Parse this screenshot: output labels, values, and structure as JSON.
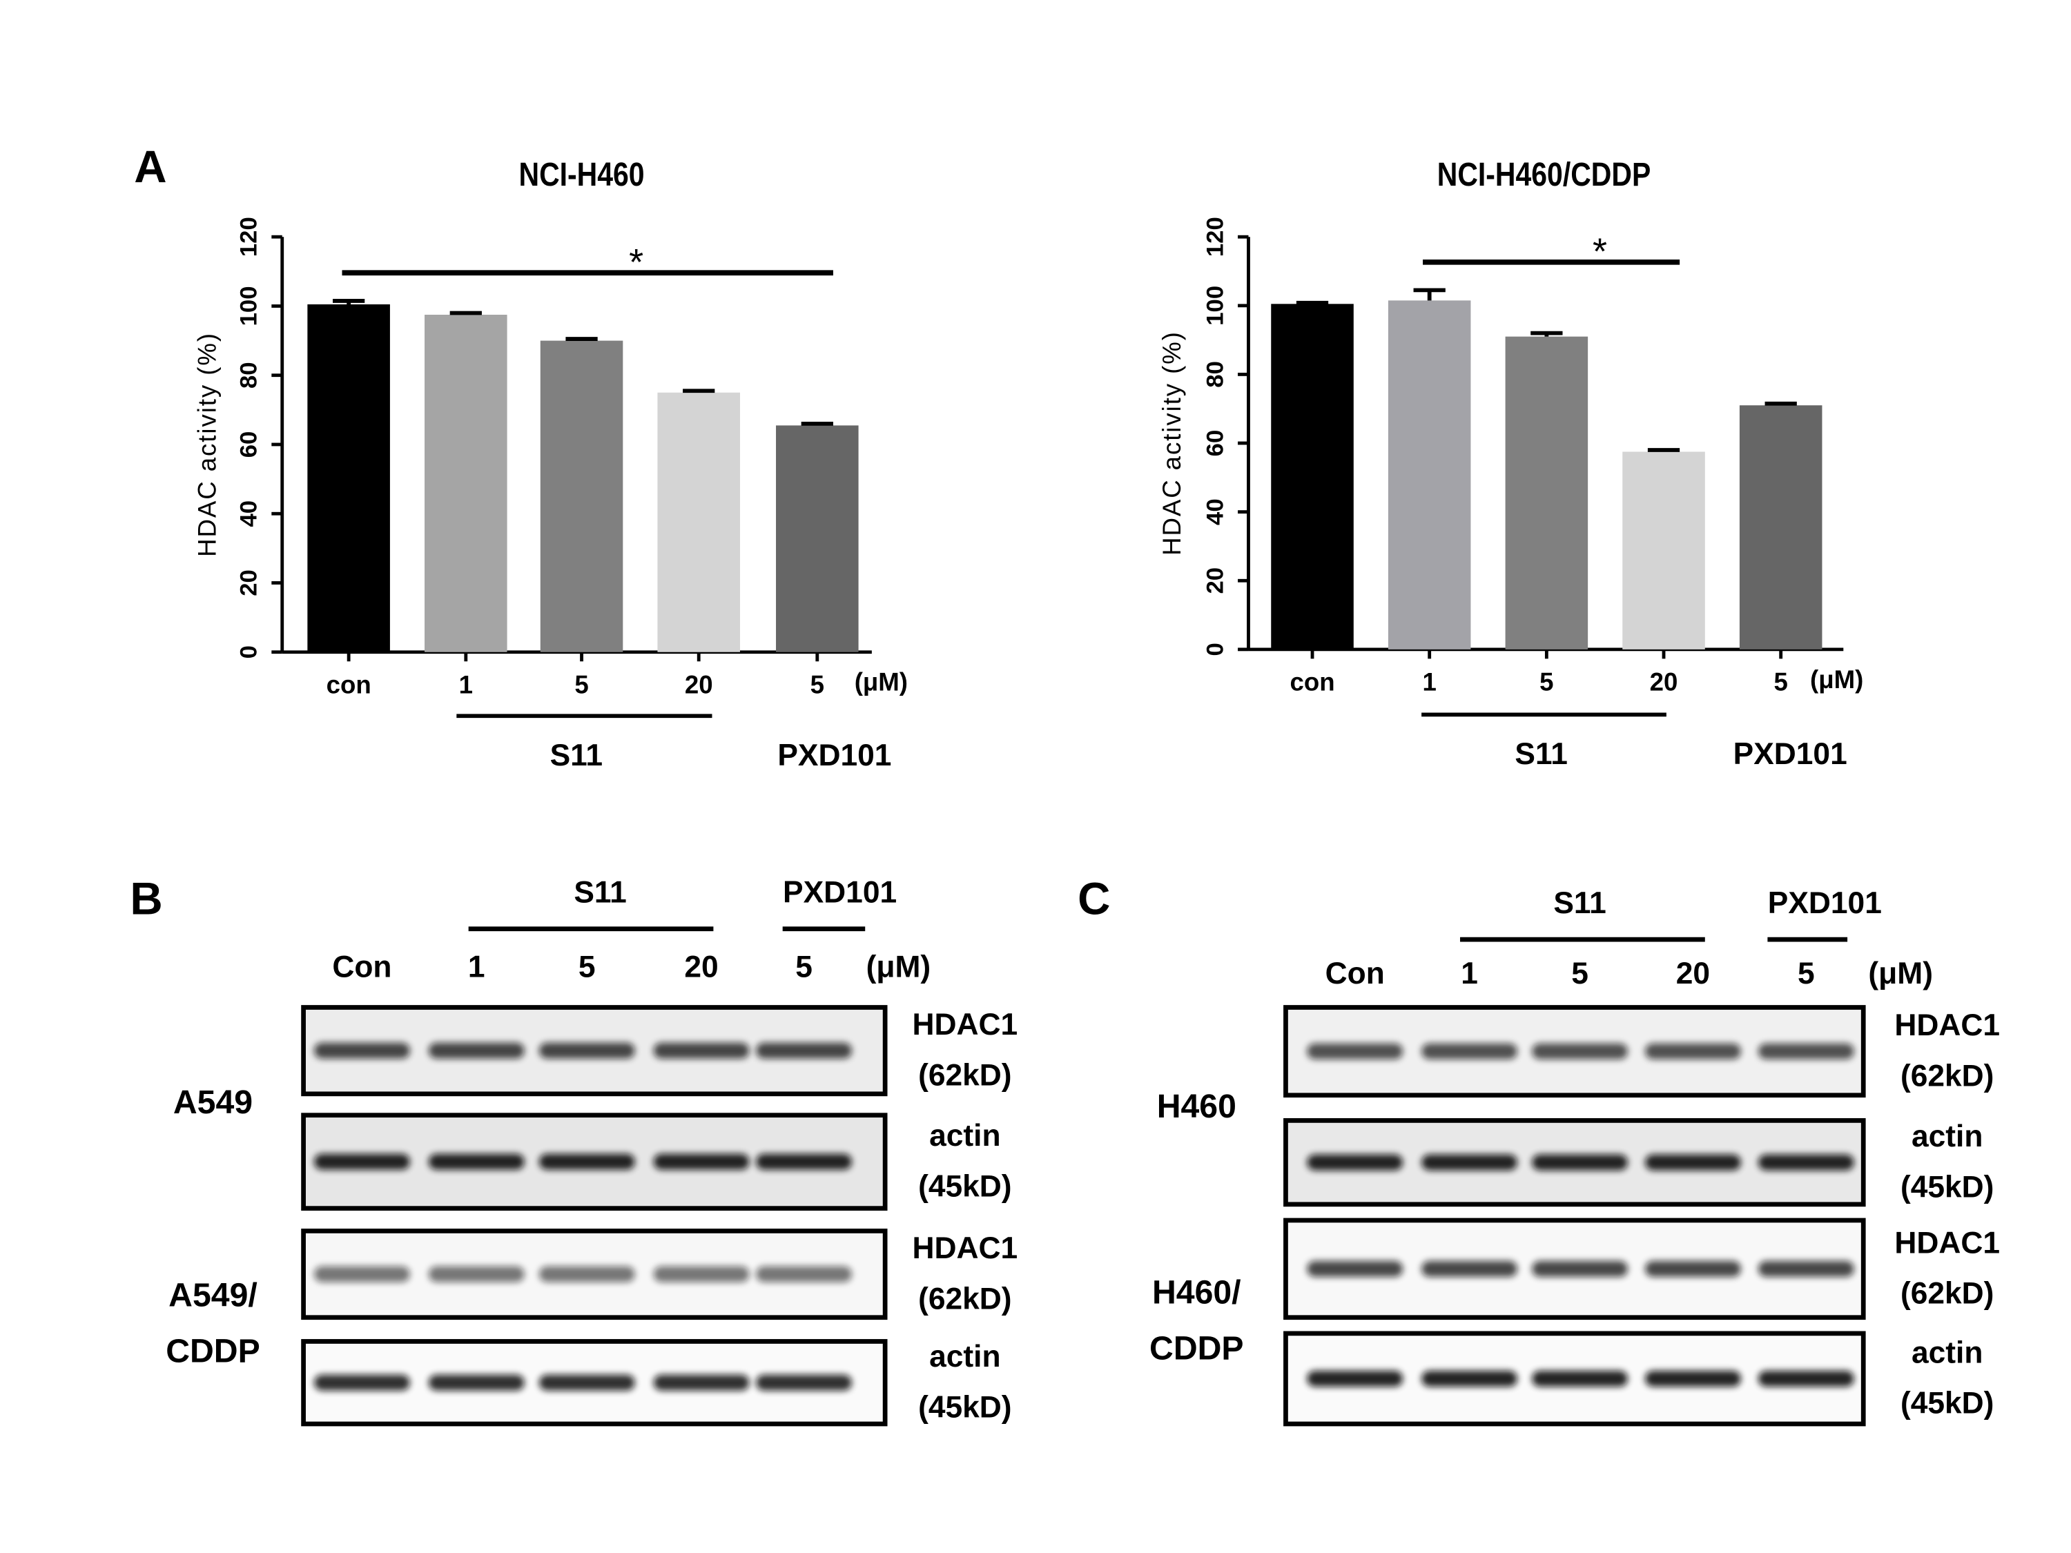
{
  "chart_data": [
    {
      "type": "bar",
      "panel": "A",
      "title": "NCI-H460",
      "y_label": "HDAC activity (%)",
      "categories": [
        "con",
        "1",
        "5",
        "20",
        "5"
      ],
      "unit": "(μM)",
      "groups": [
        "S11",
        "PXD101"
      ],
      "values": [
        100.5,
        97.5,
        90,
        75,
        65.5
      ],
      "errors": [
        1,
        0.5,
        0.5,
        0.5,
        0.5
      ],
      "colors": [
        "#000000",
        "#a5a5a5",
        "#808080",
        "#d4d4d4",
        "#666666"
      ],
      "ylim": [
        0,
        120
      ],
      "yticks": [
        0,
        20,
        40,
        60,
        80,
        100,
        120
      ],
      "significance": "*"
    },
    {
      "type": "bar",
      "title": "NCI-H460/CDDP",
      "y_label": "HDAC activity (%)",
      "categories": [
        "con",
        "1",
        "5",
        "20",
        "5"
      ],
      "unit": "(μM)",
      "groups": [
        "S11",
        "PXD101"
      ],
      "values": [
        100.5,
        101.5,
        91,
        57.5,
        71
      ],
      "errors": [
        0.3,
        3,
        1,
        0.5,
        0.5
      ],
      "colors": [
        "#000000",
        "#a3a3a8",
        "#808080",
        "#d4d4d4",
        "#666666"
      ],
      "ylim": [
        0,
        120
      ],
      "yticks": [
        0,
        20,
        40,
        60,
        80,
        100,
        120
      ],
      "significance": "*"
    }
  ],
  "blots": [
    {
      "panel": "B",
      "groups": [
        "S11",
        "PXD101"
      ],
      "lanes": [
        "Con",
        "1",
        "5",
        "20",
        "5"
      ],
      "unit": "(μM)",
      "cell_lines": [
        {
          "name": [
            "A549"
          ],
          "rows": [
            {
              "protein": "HDAC1",
              "size": "(62kD)"
            },
            {
              "protein": "actin",
              "size": "(45kD)"
            }
          ]
        },
        {
          "name": [
            "A549/",
            "CDDP"
          ],
          "rows": [
            {
              "protein": "HDAC1",
              "size": "(62kD)"
            },
            {
              "protein": "actin",
              "size": "(45kD)"
            }
          ]
        }
      ]
    },
    {
      "panel": "C",
      "groups": [
        "S11",
        "PXD101"
      ],
      "lanes": [
        "Con",
        "1",
        "5",
        "20",
        "5"
      ],
      "unit": "(μM)",
      "cell_lines": [
        {
          "name": [
            "H460"
          ],
          "rows": [
            {
              "protein": "HDAC1",
              "size": "(62kD)"
            },
            {
              "protein": "actin",
              "size": "(45kD)"
            }
          ]
        },
        {
          "name": [
            "H460/",
            "CDDP"
          ],
          "rows": [
            {
              "protein": "HDAC1",
              "size": "(62kD)"
            },
            {
              "protein": "actin",
              "size": "(45kD)"
            }
          ]
        }
      ]
    }
  ]
}
